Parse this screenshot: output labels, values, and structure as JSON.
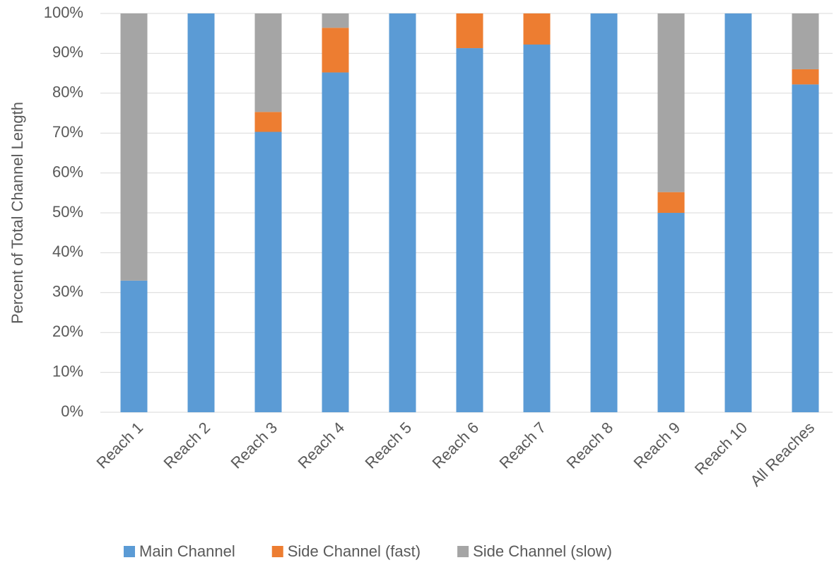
{
  "chart_data": {
    "type": "bar",
    "stacked": true,
    "y_axis_label": "Percent of Total Channel Length",
    "categories": [
      "Reach 1",
      "Reach 2",
      "Reach 3",
      "Reach 4",
      "Reach 5",
      "Reach 6",
      "Reach 7",
      "Reach 8",
      "Reach 9",
      "Reach 10",
      "All Reaches"
    ],
    "series": [
      {
        "name": "Main Channel",
        "color": "#5b9bd5",
        "values": [
          33,
          100,
          70.3,
          85.2,
          100,
          91.3,
          92.2,
          100,
          50,
          100,
          82.2
        ]
      },
      {
        "name": "Side Channel (fast)",
        "color": "#ed7d31",
        "values": [
          0,
          0,
          5,
          11.2,
          0,
          8.7,
          7.8,
          0,
          5.2,
          0,
          3.8
        ]
      },
      {
        "name": "Side Channel (slow)",
        "color": "#a5a5a5",
        "values": [
          67,
          0,
          24.7,
          3.6,
          0,
          0,
          0,
          0,
          44.8,
          0,
          14
        ]
      }
    ],
    "ylim": [
      0,
      100
    ],
    "yticks": [
      {
        "value": 0,
        "label": "0%"
      },
      {
        "value": 10,
        "label": "10%"
      },
      {
        "value": 20,
        "label": "20%"
      },
      {
        "value": 30,
        "label": "30%"
      },
      {
        "value": 40,
        "label": "40%"
      },
      {
        "value": 50,
        "label": "50%"
      },
      {
        "value": 60,
        "label": "60%"
      },
      {
        "value": 70,
        "label": "70%"
      },
      {
        "value": 80,
        "label": "80%"
      },
      {
        "value": 90,
        "label": "90%"
      },
      {
        "value": 100,
        "label": "100%"
      }
    ],
    "grid": true,
    "legend": "bottom"
  }
}
